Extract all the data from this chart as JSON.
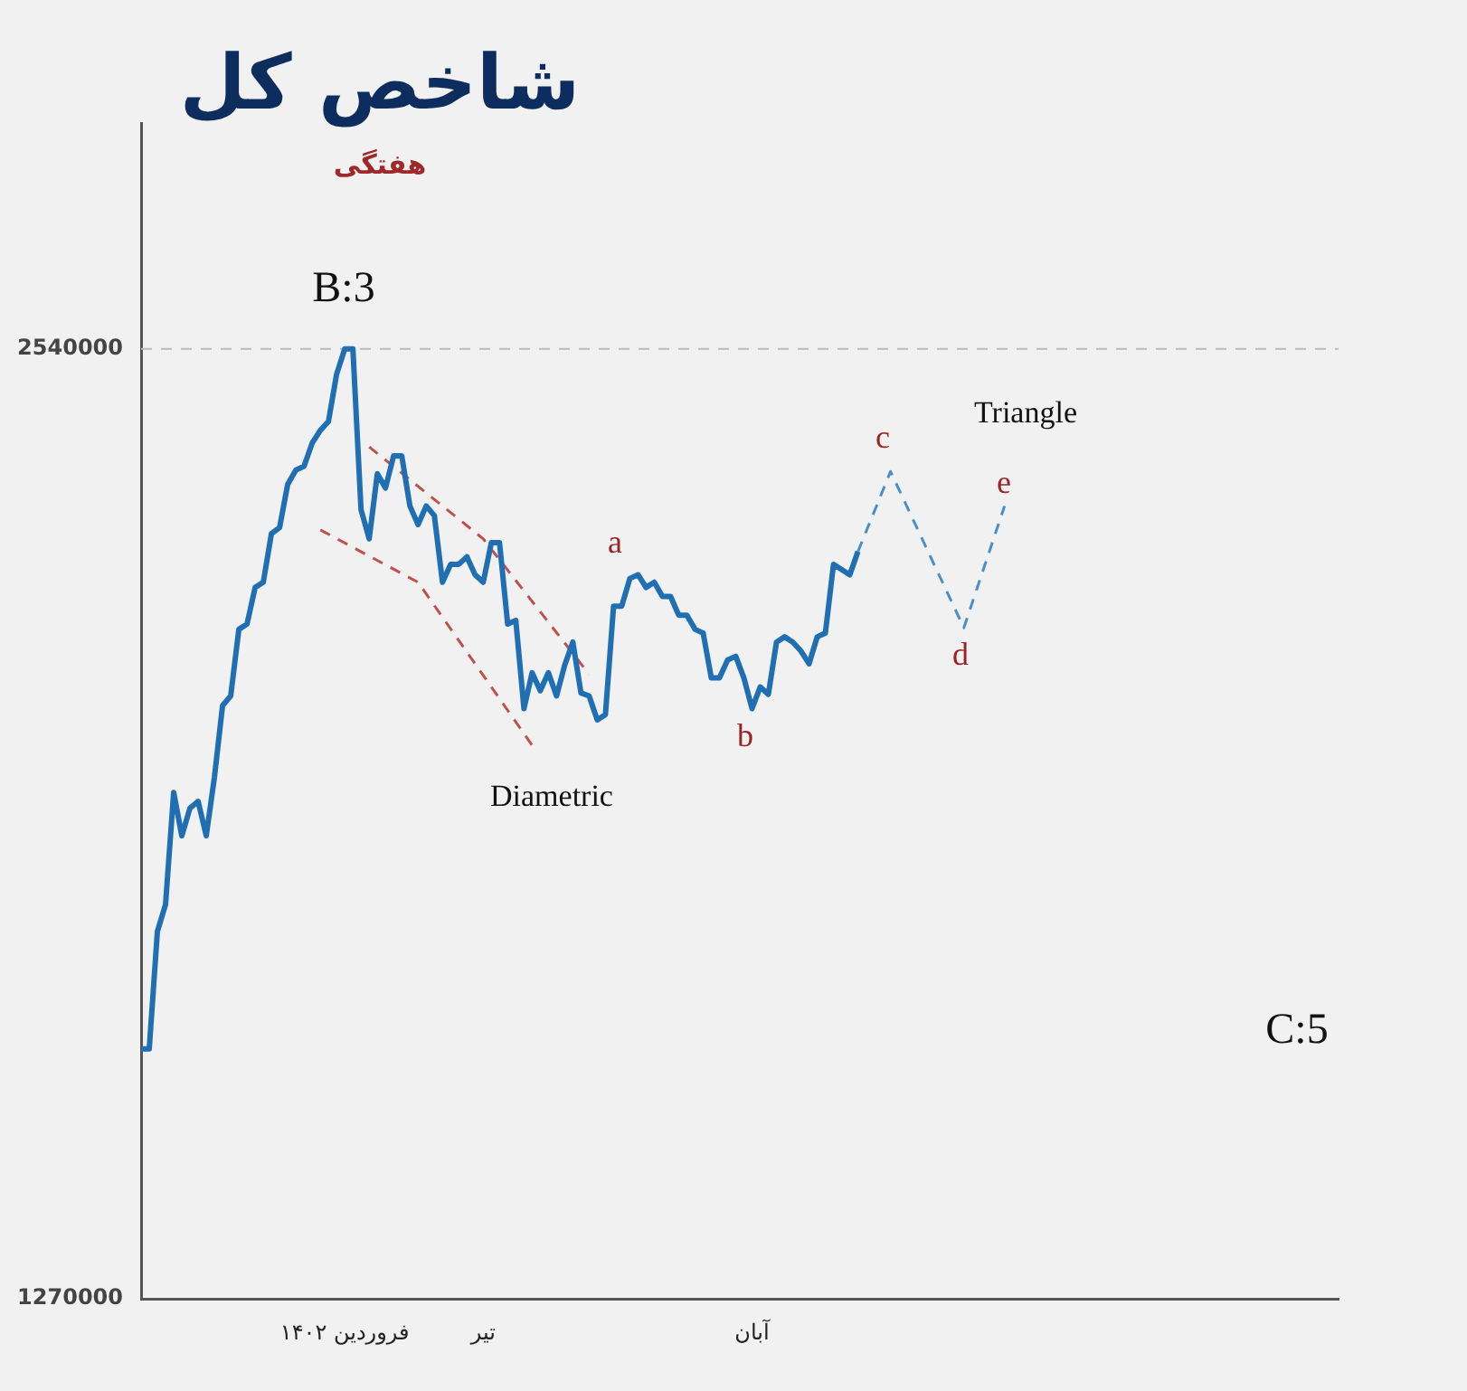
{
  "chart_data": {
    "type": "line",
    "title": "شاخص کل",
    "subtitle": "هفتگی",
    "categories": [
      null,
      null,
      null,
      null,
      null,
      null,
      null,
      null,
      null,
      null,
      null,
      null,
      null,
      null,
      null,
      null,
      null,
      null,
      null,
      null,
      null,
      null,
      null,
      null,
      null,
      "فروردین ۱۴۰۲",
      null,
      null,
      null,
      null,
      null,
      null,
      null,
      null,
      null,
      null,
      null,
      null,
      null,
      null,
      null,
      null,
      "تیر",
      null,
      null,
      null,
      null,
      null,
      null,
      null,
      null,
      null,
      null,
      null,
      null,
      null,
      null,
      null,
      null,
      null,
      null,
      null,
      null,
      null,
      null,
      null,
      null,
      null,
      null,
      null,
      null,
      null,
      null,
      null,
      null,
      "آبان",
      null,
      null,
      null,
      null,
      null,
      null,
      null,
      null,
      null,
      null,
      null,
      null,
      null,
      null,
      null,
      null,
      null,
      null,
      null,
      null,
      null,
      null,
      null,
      null,
      null,
      null,
      null,
      null,
      null,
      null,
      null,
      null,
      null,
      null,
      null,
      null,
      null,
      null,
      null,
      null,
      null,
      null,
      null,
      null,
      null,
      null,
      null,
      null,
      null,
      null,
      null,
      null,
      null,
      null,
      null,
      null,
      null,
      null,
      null,
      null,
      null,
      null,
      null,
      null,
      null,
      null,
      null,
      null,
      null,
      null,
      null,
      null
    ],
    "ylim": [
      1270000,
      2842000
    ],
    "yticks": [
      1270000,
      2540000
    ],
    "grid": false,
    "legend": false,
    "marker": "none",
    "series": [
      {
        "color": "#1f6fb2",
        "line_style": "solid",
        "values": [
          1604000,
          1604000,
          1761000,
          1797000,
          1947000,
          1889000,
          1926000,
          1935000,
          1889000,
          1967000,
          2063000,
          2076000,
          2165000,
          2172000,
          2221000,
          2228000,
          2293000,
          2301000,
          2359000,
          2378000,
          2383000,
          2414000,
          2431000,
          2443000,
          2506000,
          2540000,
          2540000,
          2325000,
          2286000,
          2373000,
          2354000,
          2397000,
          2397000,
          2330000,
          2305000,
          2330000,
          2317000,
          2228000,
          2252000,
          2252000,
          2262000,
          2238000,
          2228000,
          2281000,
          2281000,
          2172000,
          2177000,
          2059000,
          2107000,
          2083000,
          2107000,
          2076000,
          2117000,
          2148000,
          2080000,
          2076000,
          2044000,
          2051000,
          2196000,
          2196000,
          2233000,
          2238000,
          2221000,
          2228000,
          2209000,
          2209000,
          2184000,
          2184000,
          2165000,
          2160000,
          2100000,
          2100000,
          2124000,
          2129000,
          2100000,
          2059000,
          2088000,
          2078000,
          2148000,
          2155000,
          2148000,
          2136000,
          2119000,
          2155000,
          2160000,
          2252000,
          2245000,
          2238000,
          2269000,
          null,
          null,
          null,
          null,
          null,
          null,
          null,
          null,
          null,
          null,
          null,
          null,
          null,
          null,
          null,
          null,
          null,
          null,
          null,
          null,
          null,
          null,
          null,
          null,
          null,
          null,
          null,
          null,
          null,
          null,
          null,
          null,
          null,
          null,
          null,
          null,
          null,
          null,
          null,
          null,
          null,
          null,
          null,
          null,
          null,
          null,
          null,
          null,
          null,
          null,
          null,
          null,
          null,
          null,
          null,
          null,
          null,
          null,
          null
        ]
      },
      {
        "color": "#4a90c8",
        "line_style": "dashed",
        "values": [
          null,
          null,
          null,
          null,
          null,
          null,
          null,
          null,
          null,
          null,
          null,
          null,
          null,
          null,
          null,
          null,
          null,
          null,
          null,
          null,
          null,
          null,
          null,
          null,
          null,
          null,
          null,
          null,
          null,
          null,
          null,
          null,
          null,
          null,
          null,
          null,
          null,
          null,
          null,
          null,
          null,
          null,
          null,
          null,
          null,
          null,
          null,
          null,
          null,
          null,
          null,
          null,
          null,
          null,
          null,
          null,
          null,
          null,
          null,
          null,
          null,
          null,
          null,
          null,
          null,
          null,
          null,
          null,
          null,
          null,
          null,
          null,
          null,
          null,
          null,
          null,
          null,
          null,
          null,
          null,
          null,
          null,
          null,
          null,
          null,
          null,
          null,
          null,
          2269000,
          null,
          null,
          null,
          2376000,
          null,
          null,
          null,
          null,
          null,
          null,
          null,
          null,
          2167000,
          null,
          null,
          null,
          null,
          2330000,
          null,
          null,
          null,
          null,
          null,
          null,
          null,
          null,
          null,
          null,
          null,
          null,
          null,
          null,
          null,
          null,
          null,
          null,
          null,
          null,
          null,
          null,
          null,
          null,
          null,
          null,
          null,
          null,
          null,
          null,
          null,
          null,
          null,
          null,
          null,
          null,
          null,
          null,
          null,
          null,
          null
        ]
      },
      {
        "color": "#c0504d",
        "line_style": "dashed",
        "values": [
          null,
          null,
          null,
          null,
          null,
          null,
          null,
          null,
          null,
          null,
          null,
          null,
          null,
          null,
          null,
          null,
          null,
          null,
          null,
          null,
          null,
          null,
          null,
          null,
          null,
          null,
          null,
          null,
          2409000,
          null,
          null,
          null,
          null,
          null,
          null,
          null,
          null,
          null,
          null,
          null,
          null,
          null,
          2286000,
          null,
          null,
          null,
          null,
          null,
          null,
          null,
          null,
          null,
          null,
          null,
          null,
          2105000,
          null,
          null,
          null,
          null,
          null,
          null,
          null,
          null,
          null,
          null,
          null,
          null,
          null,
          null,
          null,
          null,
          null,
          null,
          null,
          null,
          null,
          null,
          null,
          null,
          null,
          null,
          null,
          null,
          null,
          null,
          null,
          null,
          null,
          null,
          null,
          null,
          null,
          null,
          null,
          null,
          null,
          null,
          null,
          null,
          null,
          null,
          null,
          null,
          null,
          null,
          null,
          null,
          null,
          null,
          null,
          null,
          null,
          null,
          null,
          null,
          null,
          null,
          null,
          null,
          null,
          null,
          null,
          null,
          null,
          null,
          null,
          null,
          null,
          null,
          null,
          null,
          null,
          null,
          null,
          null,
          null,
          null,
          null,
          null,
          null,
          null,
          null,
          null,
          null,
          null,
          null,
          null
        ]
      },
      {
        "color": "#c0504d",
        "line_style": "dashed",
        "values": [
          null,
          null,
          null,
          null,
          null,
          null,
          null,
          null,
          null,
          null,
          null,
          null,
          null,
          null,
          null,
          null,
          null,
          null,
          null,
          null,
          null,
          null,
          2298000,
          null,
          null,
          null,
          null,
          null,
          null,
          null,
          null,
          null,
          null,
          null,
          2228000,
          null,
          null,
          null,
          null,
          null,
          null,
          null,
          null,
          null,
          null,
          null,
          null,
          null,
          2010000,
          null,
          null,
          null,
          null,
          null,
          null,
          null,
          null,
          null,
          null,
          null,
          null,
          null,
          null,
          null,
          null,
          null,
          null,
          null,
          null,
          null,
          null,
          null,
          null,
          null,
          null,
          null,
          null,
          null,
          null,
          null,
          null,
          null,
          null,
          null,
          null,
          null,
          null,
          null,
          null,
          null,
          null,
          null,
          null,
          null,
          null,
          null,
          null,
          null,
          null,
          null,
          null,
          null,
          null,
          null,
          null,
          null,
          null,
          null,
          null,
          null,
          null,
          null,
          null,
          null,
          null,
          null,
          null,
          null,
          null,
          null,
          null,
          null,
          null,
          null,
          null,
          null,
          null,
          null,
          null,
          null,
          null,
          null,
          null,
          null,
          null,
          null,
          null,
          null,
          null,
          null,
          null,
          null,
          null,
          null,
          null,
          null,
          null,
          null
        ]
      }
    ],
    "ref_lines": [
      {
        "axis": "y",
        "value": 2540000,
        "color": "#bbbbbb",
        "line_style": "dashed"
      }
    ],
    "annotations": [
      "B:3",
      "C:5",
      "a",
      "b",
      "c",
      "d",
      "e",
      "Diametric",
      "Triangle"
    ]
  }
}
